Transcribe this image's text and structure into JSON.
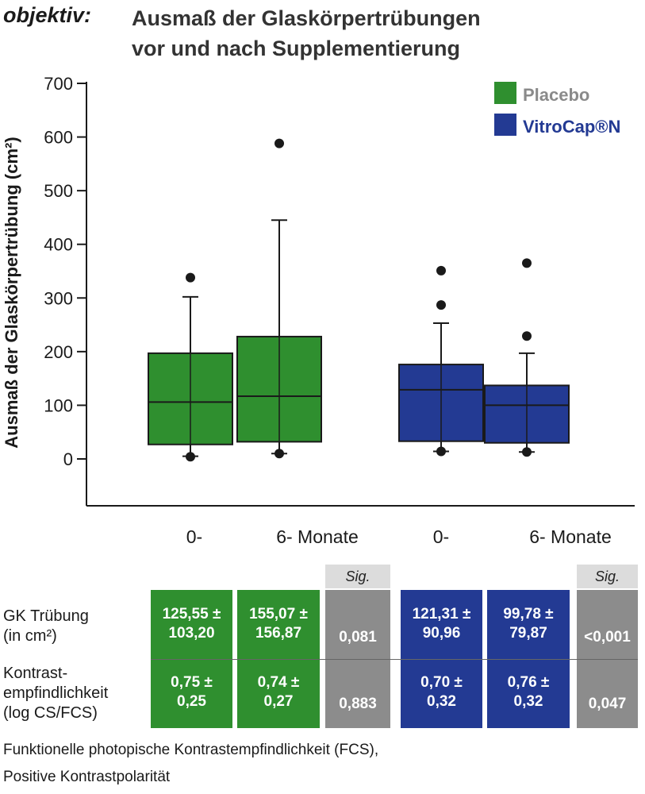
{
  "header": {
    "prefix": "objektiv:",
    "title_line1": "Ausmaß der Glaskörpertrübungen",
    "title_line2": "vor und nach Supplementierung"
  },
  "chart_data": {
    "type": "box",
    "ylabel": "Ausmaß der Glaskörpertrübung (cm²)",
    "ylim": [
      -85,
      715
    ],
    "yticks": [
      0,
      100,
      200,
      300,
      400,
      500,
      600,
      700
    ],
    "categories": [
      "0-",
      "6- Monate",
      "0-",
      "6- Monate"
    ],
    "legend_position": "top-right",
    "colors": {
      "placebo": "#2f8f2f",
      "vitrocap": "#233a93",
      "label_placebo": "#8a8a8a",
      "label_vitrocap": "#233a93"
    },
    "series": [
      {
        "name": "Placebo",
        "boxes": [
          {
            "category": "0-",
            "min": 5,
            "q1": 27,
            "median": 106,
            "q3": 197,
            "max": 302,
            "outliers": [
              338,
              4
            ]
          },
          {
            "category": "6- Monate",
            "min": 10,
            "q1": 32,
            "median": 117,
            "q3": 228,
            "max": 445,
            "outliers": [
              588,
              10
            ]
          }
        ]
      },
      {
        "name": "VitroCap®N",
        "boxes": [
          {
            "category": "0-",
            "min": 14,
            "q1": 33,
            "median": 129,
            "q3": 176,
            "max": 253,
            "outliers": [
              351,
              287,
              14
            ]
          },
          {
            "category": "6- Monate",
            "min": 13,
            "q1": 30,
            "median": 100,
            "q3": 137,
            "max": 197,
            "outliers": [
              365,
              229,
              13
            ]
          }
        ]
      }
    ]
  },
  "table": {
    "sig_label": "Sig.",
    "rows": [
      {
        "label_lines": [
          "GK Trübung",
          "(in cm²)"
        ],
        "placebo_0": [
          "125,55 ±",
          "103,20"
        ],
        "placebo_6": [
          "155,07 ±",
          "156,87"
        ],
        "placebo_sig": "0,081",
        "vitro_0": [
          "121,31 ±",
          "90,96"
        ],
        "vitro_6": [
          "99,78 ±",
          "79,87"
        ],
        "vitro_sig": "<0,001"
      },
      {
        "label_lines": [
          "Kontrast-",
          "empfindlichkeit",
          "(log CS/FCS)"
        ],
        "placebo_0": [
          "0,75 ±",
          "0,25"
        ],
        "placebo_6": [
          "0,74 ±",
          "0,27"
        ],
        "placebo_sig": "0,883",
        "vitro_0": [
          "0,70 ±",
          "0,32"
        ],
        "vitro_6": [
          "0,76 ±",
          "0,32"
        ],
        "vitro_sig": "0,047"
      }
    ]
  },
  "footnote": {
    "line1": "Funktionelle photopische Kontrastempfindlichkeit (FCS),",
    "line2": "Positive Kontrastpolarität"
  }
}
